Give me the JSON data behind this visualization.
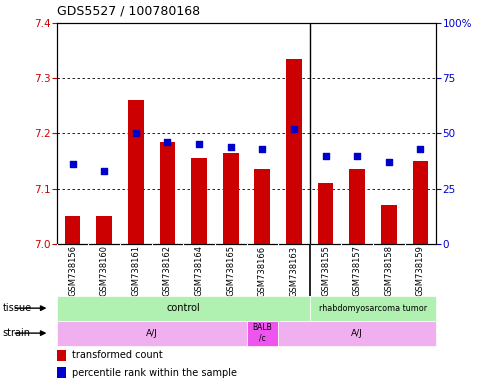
{
  "title": "GDS5527 / 100780168",
  "samples": [
    "GSM738156",
    "GSM738160",
    "GSM738161",
    "GSM738162",
    "GSM738164",
    "GSM738165",
    "GSM738166",
    "GSM738163",
    "GSM738155",
    "GSM738157",
    "GSM738158",
    "GSM738159"
  ],
  "transformed_count": [
    7.05,
    7.05,
    7.26,
    7.185,
    7.155,
    7.165,
    7.135,
    7.335,
    7.11,
    7.135,
    7.07,
    7.15
  ],
  "percentile_rank": [
    36,
    33,
    50,
    46,
    45,
    44,
    43,
    52,
    40,
    40,
    37,
    43
  ],
  "ylim_left": [
    7.0,
    7.4
  ],
  "ylim_right": [
    0,
    100
  ],
  "yticks_left": [
    7.0,
    7.1,
    7.2,
    7.3,
    7.4
  ],
  "yticks_right": [
    0,
    25,
    50,
    75,
    100
  ],
  "bar_color": "#cc0000",
  "dot_color": "#0000cc",
  "bar_width": 0.5,
  "n_control": 8,
  "n_total": 12,
  "strain_split": [
    6,
    1,
    5
  ],
  "tissue_control_color": "#b0f0b0",
  "tissue_tumor_color": "#b0f0b0",
  "strain_aj_color": "#f0b0f0",
  "strain_balb_color": "#ee55ee",
  "bg_color": "#ffffff",
  "tick_area_bg": "#cccccc",
  "title_fontsize": 9,
  "axis_label_fontsize": 7.5,
  "sample_label_fontsize": 6,
  "row_label_fontsize": 7,
  "legend_fontsize": 7
}
